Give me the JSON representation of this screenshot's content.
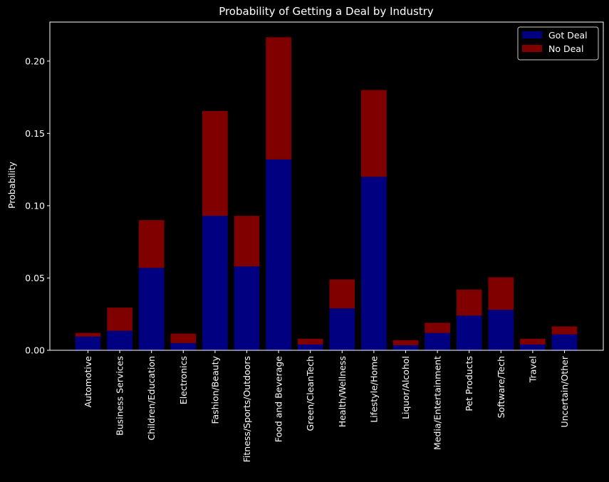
{
  "chart_data": {
    "type": "bar",
    "stacked": true,
    "title": "Probability of Getting a Deal by Industry",
    "xlabel": "",
    "ylabel": "Probability",
    "ylim": [
      0,
      0.227
    ],
    "yticks": [
      "0.00",
      "0.05",
      "0.10",
      "0.15",
      "0.20"
    ],
    "ytick_values": [
      0,
      0.05,
      0.1,
      0.15,
      0.2
    ],
    "grid": false,
    "legend_position": "top-right",
    "categories": [
      "Automotive",
      "Business Services",
      "Children/Education",
      "Electronics",
      "Fashion/Beauty",
      "Fitness/Sports/Outdoors",
      "Food and Beverage",
      "Green/CleanTech",
      "Health/Wellness",
      "Lifestyle/Home",
      "Liquor/Alcohol",
      "Media/Entertainment",
      "Pet Products",
      "Software/Tech",
      "Travel",
      "Uncertain/Other"
    ],
    "series": [
      {
        "name": "Got Deal",
        "color": "#000080",
        "values": [
          0.0095,
          0.0135,
          0.057,
          0.005,
          0.093,
          0.058,
          0.132,
          0.004,
          0.029,
          0.12,
          0.0035,
          0.012,
          0.024,
          0.028,
          0.004,
          0.011
        ]
      },
      {
        "name": "No Deal",
        "color": "#800000",
        "values": [
          0.0025,
          0.016,
          0.033,
          0.0065,
          0.0725,
          0.035,
          0.0845,
          0.004,
          0.02,
          0.06,
          0.0035,
          0.007,
          0.018,
          0.0225,
          0.004,
          0.0055
        ]
      }
    ]
  }
}
